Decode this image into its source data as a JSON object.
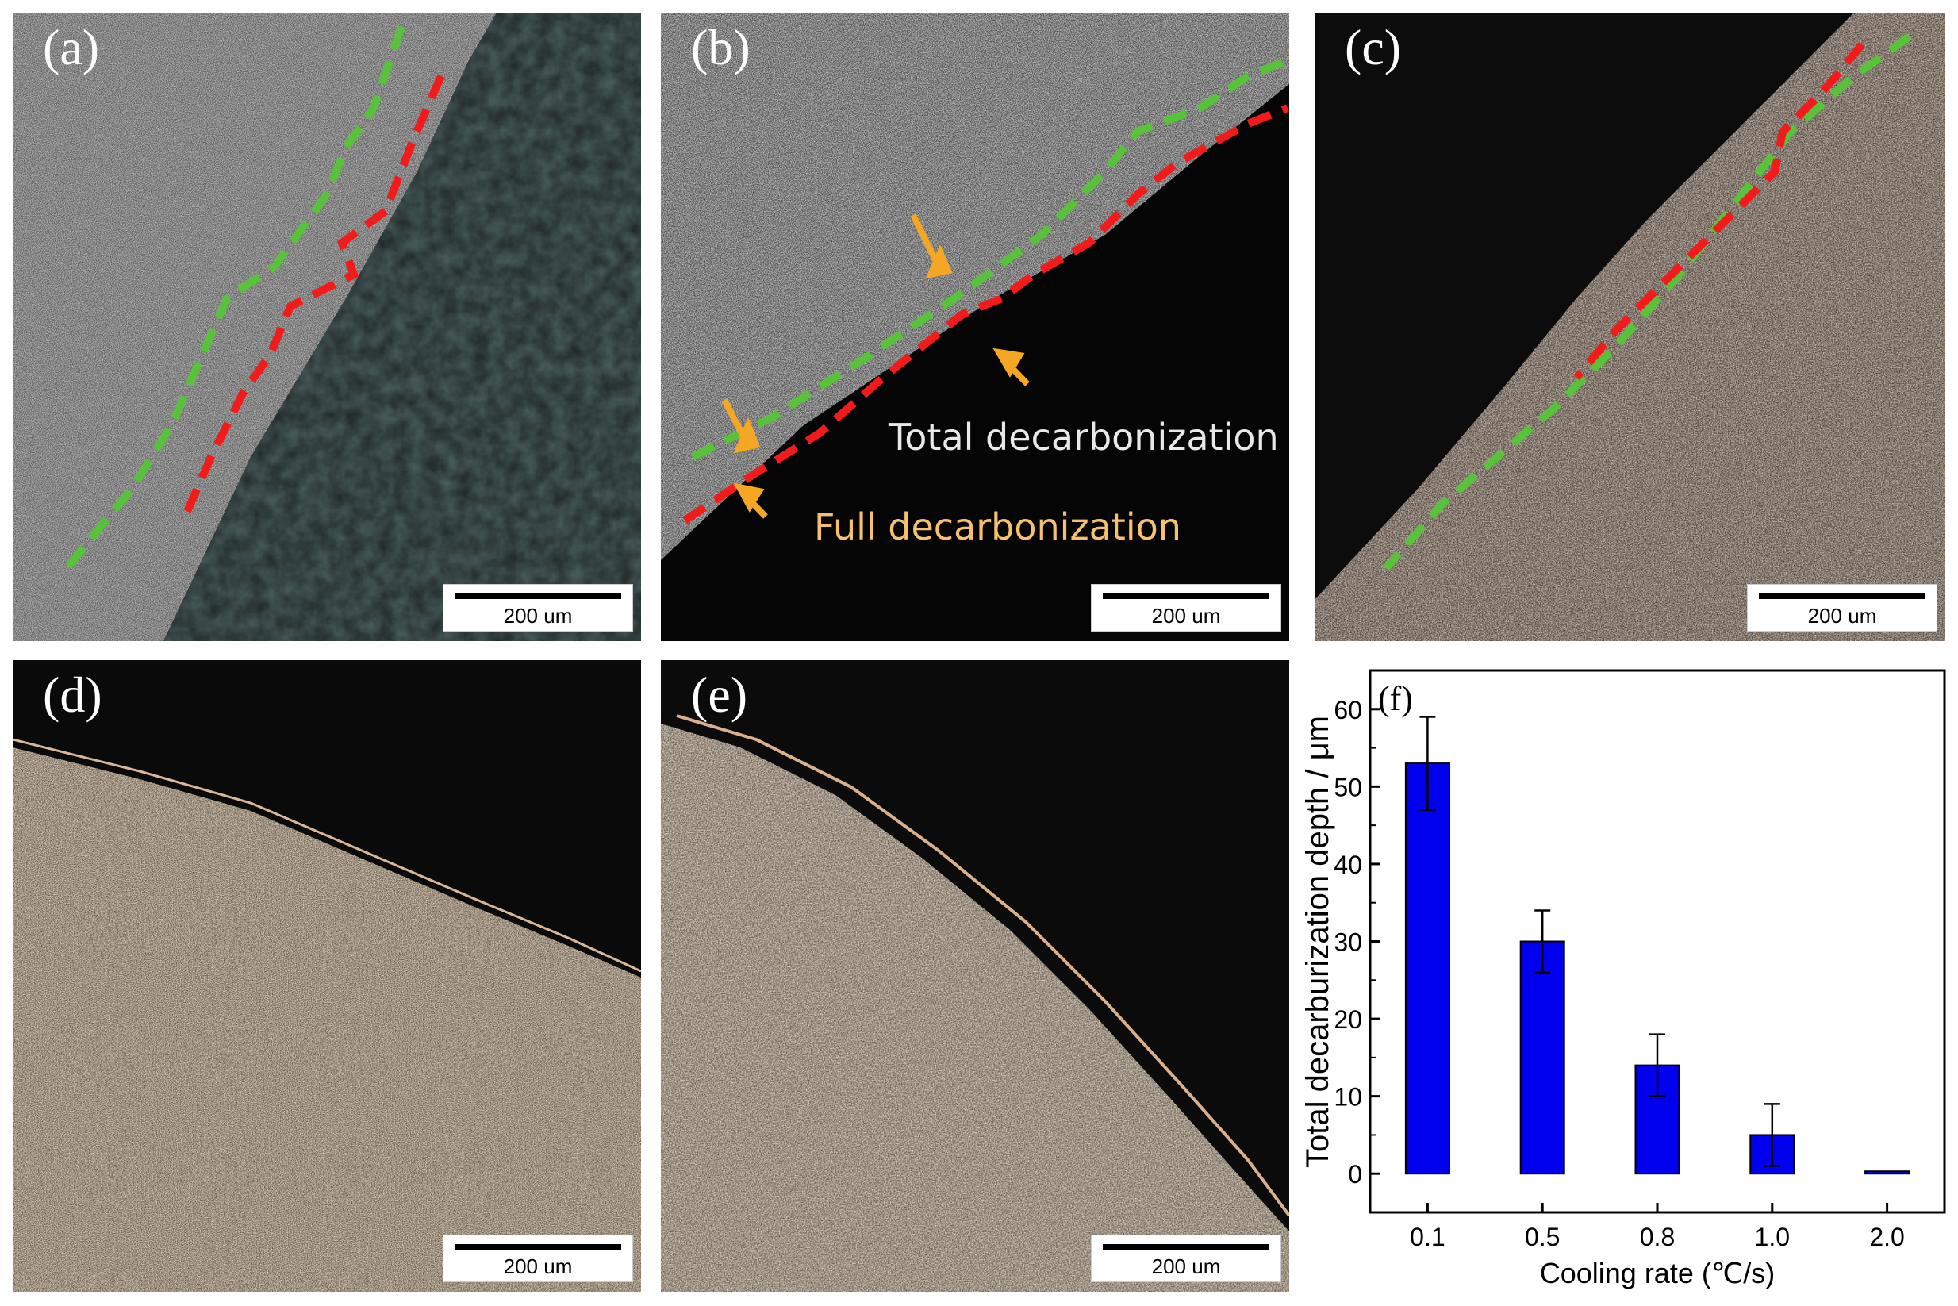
{
  "panels": [
    {
      "label": "(a)",
      "scale": "200 um"
    },
    {
      "label": "(b)",
      "scale": "200 um",
      "annotations": {
        "total": "Total decarbonization",
        "full": "Full decarbonization"
      }
    },
    {
      "label": "(c)",
      "scale": "200 um"
    },
    {
      "label": "(d)",
      "scale": "200 um"
    },
    {
      "label": "(e)",
      "scale": "200 um"
    }
  ],
  "colors": {
    "total_line": "#58c23a",
    "full_line": "#f21b1b",
    "arrow": "#f5a623",
    "bar": "#0000ee"
  },
  "chart_data": {
    "type": "bar",
    "panel_label": "(f)",
    "categories": [
      "0.1",
      "0.5",
      "0.8",
      "1.0",
      "2.0"
    ],
    "values": [
      53,
      30,
      14,
      5,
      0
    ],
    "errors": [
      6,
      4,
      4,
      4,
      0
    ],
    "xlabel": "Cooling rate (℃/s)",
    "ylabel": "Total decarburization depth / μm",
    "ylim": [
      -5,
      65
    ],
    "yticks": [
      "0",
      "10",
      "20",
      "30",
      "40",
      "50",
      "60"
    ],
    "grid": false
  }
}
